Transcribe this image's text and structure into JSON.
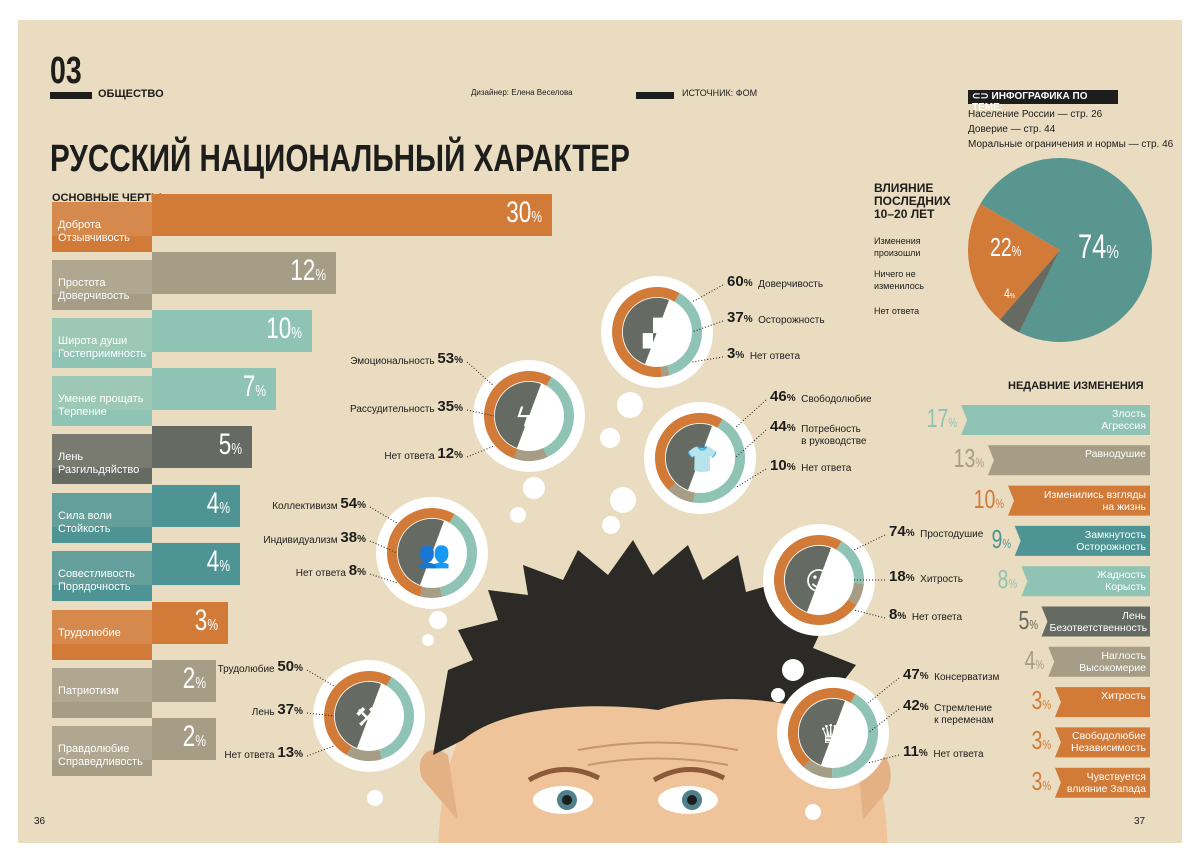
{
  "header": {
    "section_number": "03",
    "section": "ОБЩЕСТВО",
    "designer": "Дизайнер: Елена Веселова",
    "source": "ИСТОЧНИК: ФОМ",
    "title": "РУССКИЙ НАЦИОНАЛЬНЫЙ ХАРАКТЕР"
  },
  "related": {
    "heading": "ИНФОГРАФИКА ПО ТЕМЕ:",
    "items": [
      "Население России — стр. 26",
      "Доверие — стр. 44",
      "Моральные ограничения и нормы — стр. 46"
    ]
  },
  "pages": {
    "left": "36",
    "right": "37"
  },
  "colors": {
    "background": "#e9dcc0",
    "orange": "#d27a38",
    "teal_light": "#8fc4b4",
    "teal_dark": "#4e9494",
    "grey_dark": "#656a62",
    "beige": "#a59d86"
  },
  "chart_data": [
    {
      "type": "bar",
      "title": "ОСНОВНЫЕ ЧЕРТЫ",
      "unit": "%",
      "categories": [
        "Доброта\nОтзывчивость",
        "Простота\nДоверчивость",
        "Широта души\nГостеприимность",
        "Умение прощать\nТерпение",
        "Лень\nРазгильдяйство",
        "Сила воли\nСтойкость",
        "Совестливость\nПорядочность",
        "Трудолюбие",
        "Патриотизм",
        "Правдолюбие\nСправедливость"
      ],
      "values": [
        30,
        12,
        10,
        7,
        5,
        4,
        4,
        3,
        2,
        2
      ],
      "colors": [
        "#d27a38",
        "#a59d86",
        "#8fc4b4",
        "#8fc4b4",
        "#656a62",
        "#4e9494",
        "#4e9494",
        "#d27a38",
        "#a59d86",
        "#a59d86"
      ]
    },
    {
      "type": "pie",
      "title": "ВЛИЯНИЕ ПОСЛЕДНИХ 10–20 ЛЕТ",
      "slices": [
        {
          "label": "Ничего не изменилось",
          "value": 74,
          "color": "#5a9690"
        },
        {
          "label": "Нет ответа",
          "value": 4,
          "color": "#656a62"
        },
        {
          "label": "Изменения произошли",
          "value": 22,
          "color": "#d27a38"
        }
      ]
    },
    {
      "type": "bar",
      "title": "НЕДАВНИЕ ИЗМЕНЕНИЯ",
      "unit": "%",
      "categories": [
        "Злость\nАгрессия",
        "Равнодушие",
        "Изменились взгляды\nна жизнь",
        "Замкнутость\nОсторожность",
        "Жадность\nКорысть",
        "Лень\nБезответственность",
        "Наглость\nВысокомерие",
        "Хитрость",
        "Свободолюбие\nНезависимость",
        "Чувствуется\nвлияние Запада"
      ],
      "values": [
        17,
        13,
        10,
        9,
        8,
        5,
        4,
        3,
        3,
        3
      ],
      "colors": [
        "#8fc4b4",
        "#a59d86",
        "#d27a38",
        "#4e9494",
        "#8fc4b4",
        "#656a62",
        "#a59d86",
        "#d27a38",
        "#d27a38",
        "#d27a38"
      ]
    },
    {
      "type": "donut",
      "items": [
        {
          "icon": "rake-hand-icon",
          "series": [
            {
              "label": "Доверчивость",
              "value": 60
            },
            {
              "label": "Осторожность",
              "value": 37
            },
            {
              "label": "Нет ответа",
              "value": 3
            }
          ]
        },
        {
          "icon": "lightning-brain-icon",
          "series": [
            {
              "label": "Эмоциональность",
              "value": 53
            },
            {
              "label": "Рассудительность",
              "value": 35
            },
            {
              "label": "Нет ответа",
              "value": 12
            }
          ]
        },
        {
          "icon": "shirt-suit-icon",
          "series": [
            {
              "label": "Свободолюбие",
              "value": 46
            },
            {
              "label": "Потребность\nв руководстве",
              "value": 44
            },
            {
              "label": "Нет ответа",
              "value": 10
            }
          ]
        },
        {
          "icon": "people-group-icon",
          "series": [
            {
              "label": "Коллективизм",
              "value": 54
            },
            {
              "label": "Индивидуализм",
              "value": 38
            },
            {
              "label": "Нет ответа",
              "value": 8
            }
          ]
        },
        {
          "icon": "angel-fox-icon",
          "series": [
            {
              "label": "Простодушие",
              "value": 74
            },
            {
              "label": "Хитрость",
              "value": 18
            },
            {
              "label": "Нет ответа",
              "value": 8
            }
          ]
        },
        {
          "icon": "iron-hammer-icon",
          "series": [
            {
              "label": "Трудолюбие",
              "value": 50
            },
            {
              "label": "Лень",
              "value": 37
            },
            {
              "label": "Нет ответа",
              "value": 13
            }
          ]
        },
        {
          "icon": "crown-sailboat-icon",
          "series": [
            {
              "label": "Консерватизм",
              "value": 47
            },
            {
              "label": "Стремление\nк переменам",
              "value": 42
            },
            {
              "label": "Нет ответа",
              "value": 11
            }
          ]
        }
      ]
    }
  ]
}
